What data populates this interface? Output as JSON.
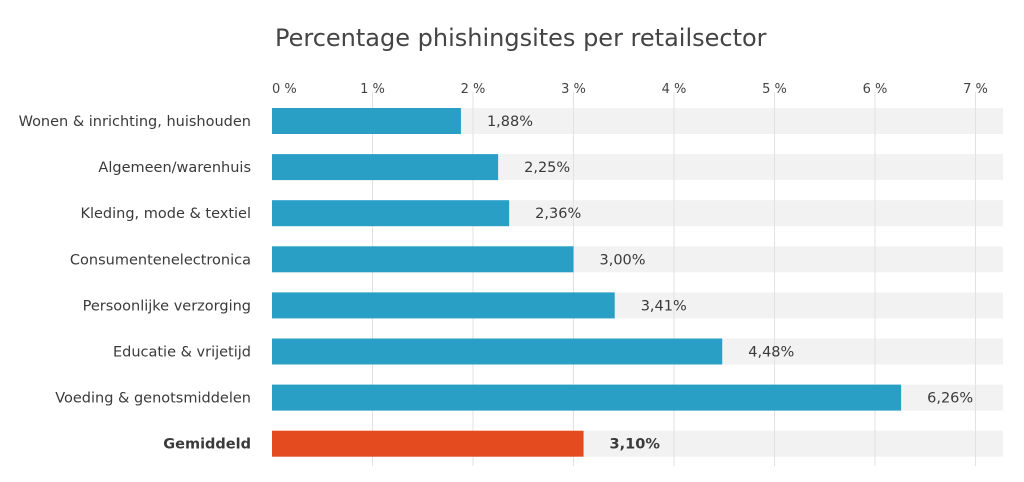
{
  "chart_data": {
    "type": "bar",
    "orientation": "horizontal",
    "title": "Percentage phishingsites per retailsector",
    "xlim": [
      0,
      7.5
    ],
    "ticks": [
      {
        "value": 0,
        "label": "0 %"
      },
      {
        "value": 1,
        "label": "1 %"
      },
      {
        "value": 2,
        "label": "2 %"
      },
      {
        "value": 3,
        "label": "3 %"
      },
      {
        "value": 4,
        "label": "4 %"
      },
      {
        "value": 5,
        "label": "5 %"
      },
      {
        "value": 6,
        "label": "6 %"
      },
      {
        "value": 7,
        "label": "7 %"
      }
    ],
    "grid": true,
    "categories": [
      "Wonen & inrichting, huishouden",
      "Algemeen/warenhuis",
      "Kleding, mode & textiel",
      "Consumentenelectronica",
      "Persoonlijke verzorging",
      "Educatie & vrijetijd",
      "Voeding & genotsmiddelen",
      "Gemiddeld"
    ],
    "values": [
      1.88,
      2.25,
      2.36,
      3.0,
      3.41,
      4.48,
      6.26,
      3.1
    ],
    "value_labels": [
      "1,88%",
      "2,25%",
      "2,36%",
      "3,00%",
      "3,41%",
      "4,48%",
      "6,26%",
      "3,10%"
    ],
    "highlight_index": 7,
    "colors": {
      "bar": "#2a9fc6",
      "highlight": "#e44c20",
      "track": "#f2f2f2",
      "grid": "#e2e2e2"
    }
  }
}
